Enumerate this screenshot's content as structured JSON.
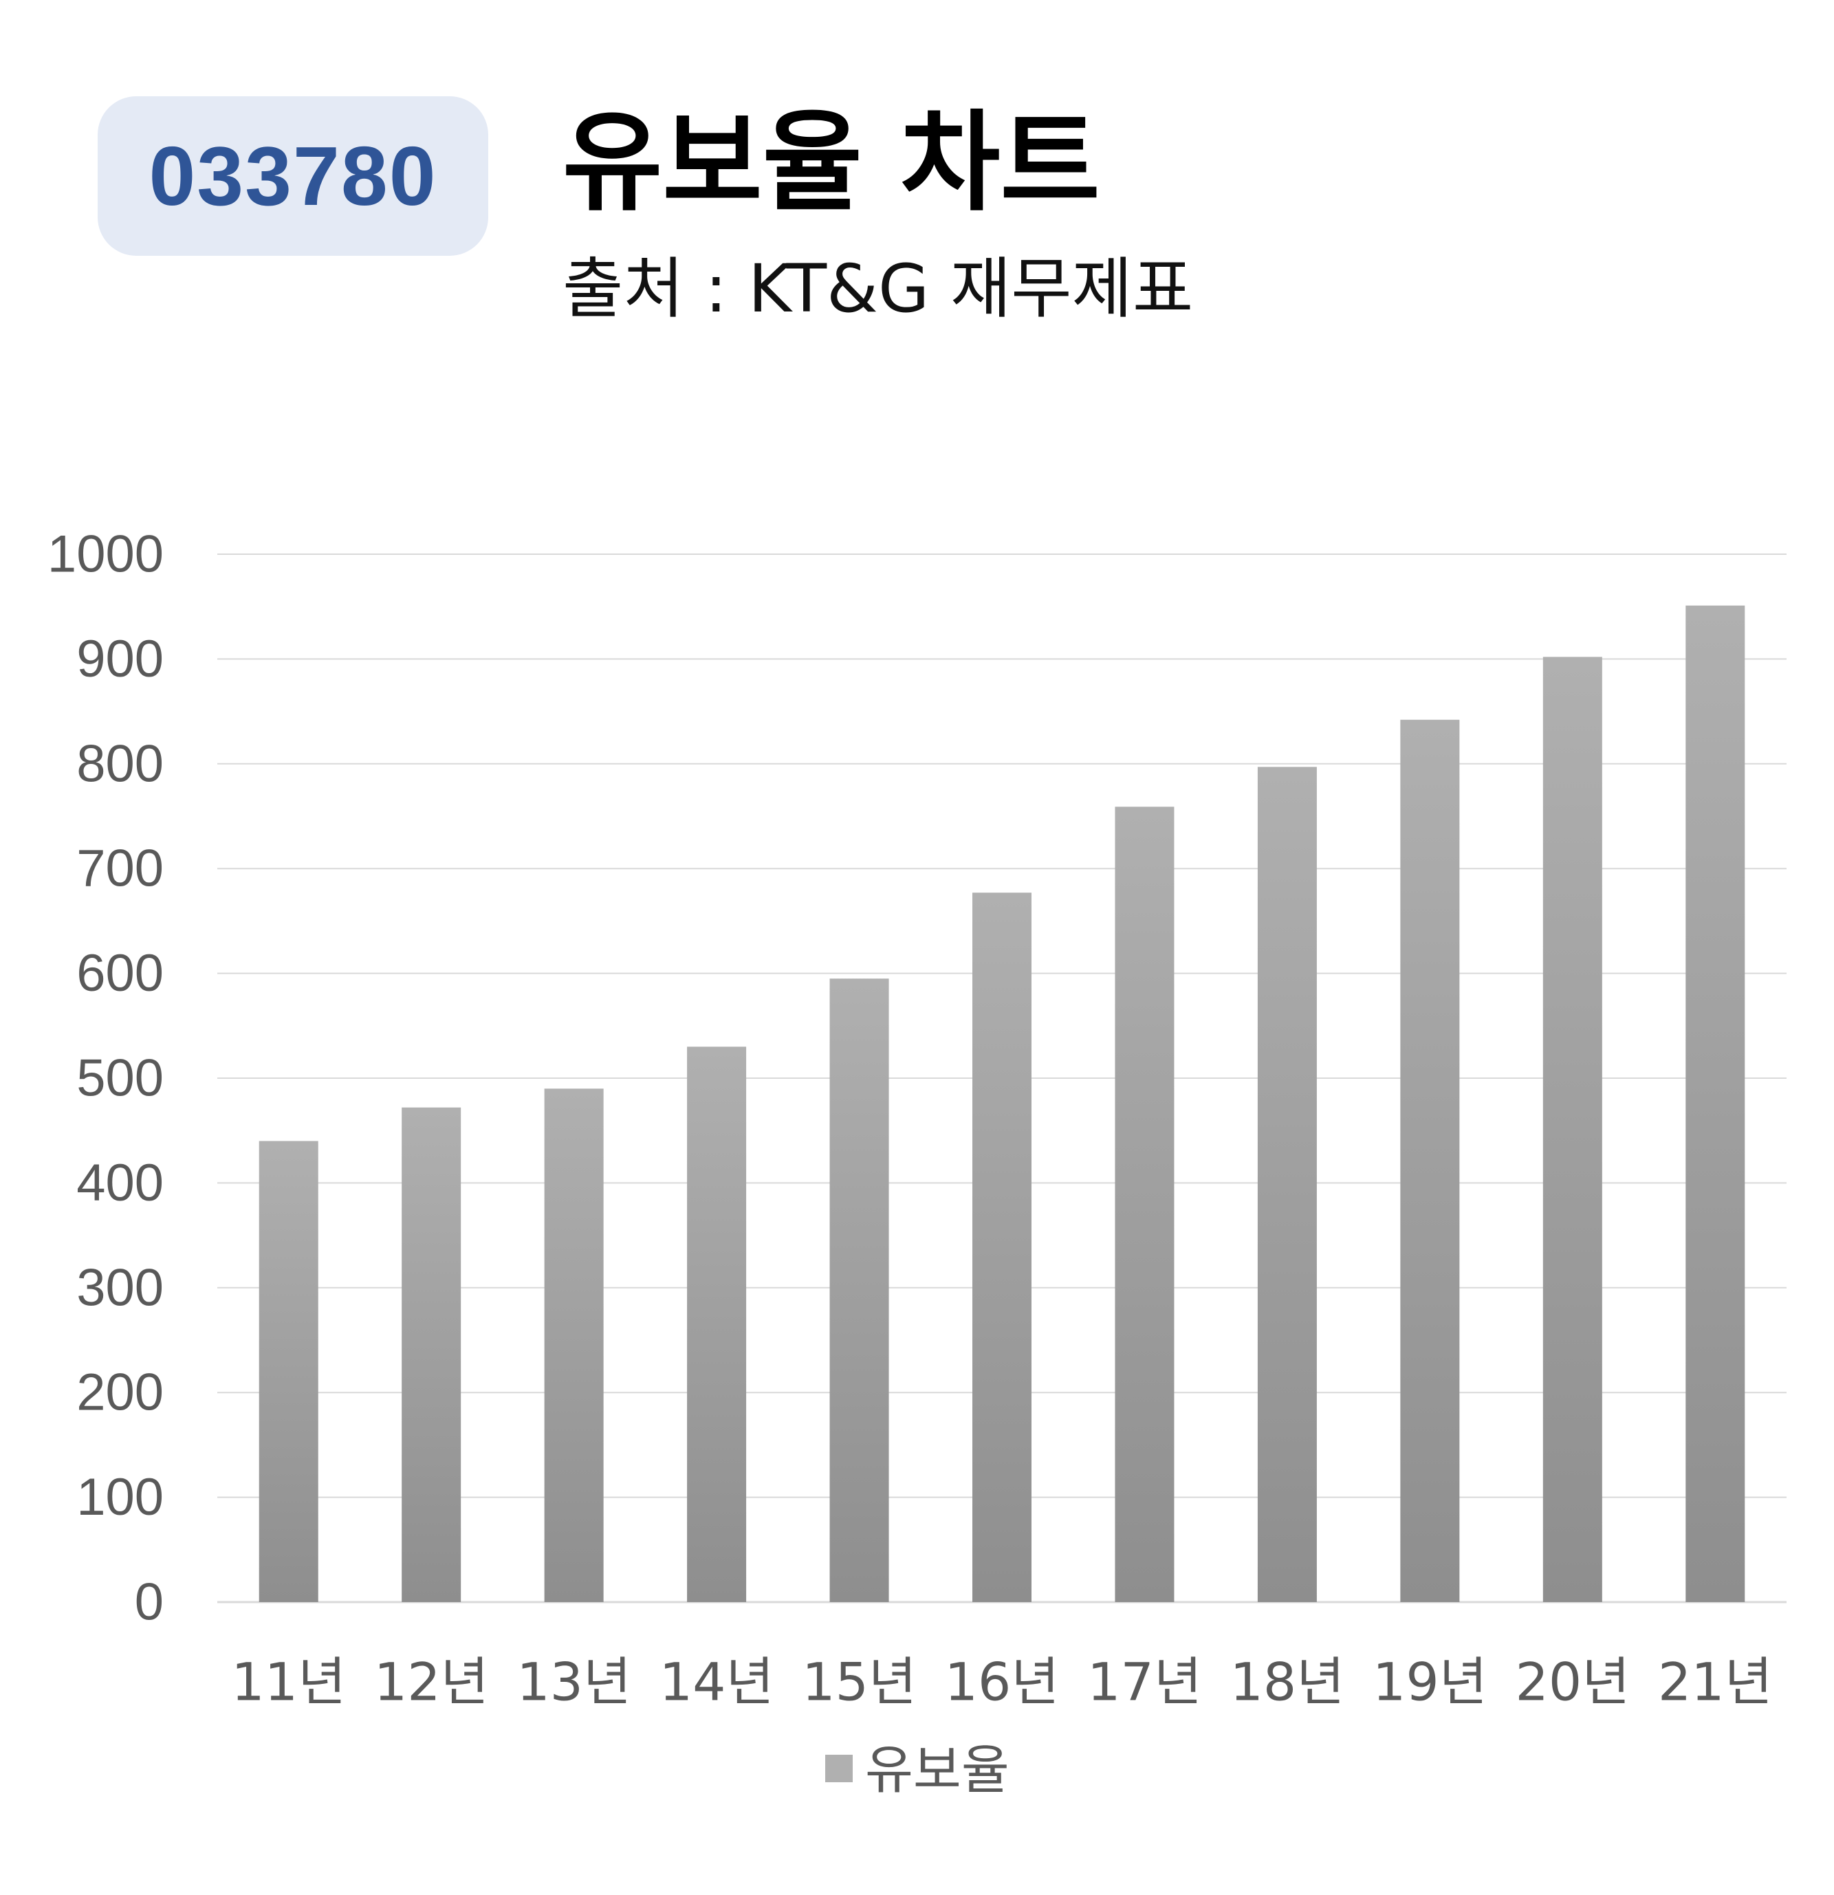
{
  "header": {
    "code": "033780",
    "title": "유보율 차트",
    "source": "출처 : KT&G 재무제표"
  },
  "colors": {
    "badge_bg": "#e4eaf5",
    "badge_text": "#2f5597",
    "bar_top": "#b0b0b0",
    "bar_bottom": "#8e8e8e",
    "grid": "#d9d9d9",
    "axis_text": "#595959"
  },
  "chart_data": {
    "type": "bar",
    "categories": [
      "11년",
      "12년",
      "13년",
      "14년",
      "15년",
      "16년",
      "17년",
      "18년",
      "19년",
      "20년",
      "21년"
    ],
    "series": [
      {
        "name": "유보율",
        "values": [
          440,
          472,
          490,
          530,
          595,
          677,
          759,
          797,
          842,
          902,
          951
        ]
      }
    ],
    "ylim": [
      0,
      1000
    ],
    "yticks": [
      "0",
      "100",
      "200",
      "300",
      "400",
      "500",
      "600",
      "700",
      "800",
      "900",
      "1000"
    ],
    "grid": true,
    "legend": "bottom-center"
  }
}
